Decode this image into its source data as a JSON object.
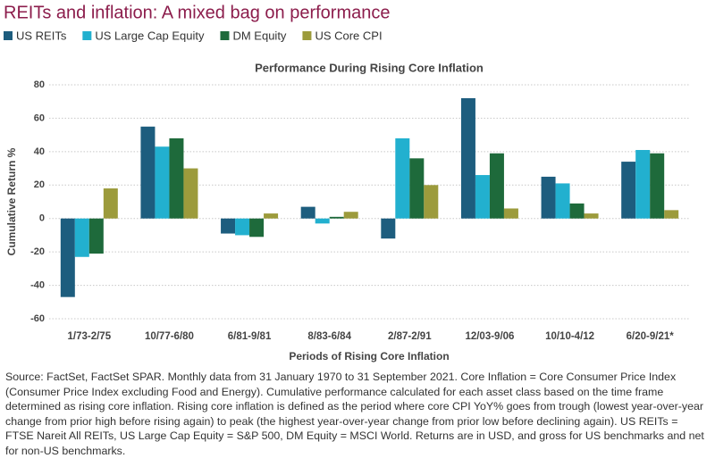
{
  "chart_data": {
    "type": "bar",
    "title": "REITs and inflation: A mixed bag on performance",
    "subtitle": "Performance During Rising Core Inflation",
    "xlabel": "Periods of Rising Core Inflation",
    "ylabel": "Cumulative Return %",
    "categories": [
      "1/73-2/75",
      "10/77-6/80",
      "6/81-9/81",
      "8/83-6/84",
      "2/87-2/91",
      "12/03-9/06",
      "10/10-4/12",
      "6/20-9/21*"
    ],
    "series": [
      {
        "name": "US REITs",
        "color": "#1d5d7e",
        "values": [
          -47,
          55,
          -9,
          7,
          -12,
          72,
          25,
          34
        ]
      },
      {
        "name": "US Large Cap Equity",
        "color": "#22b0cf",
        "values": [
          -23,
          43,
          -10,
          -3,
          48,
          26,
          21,
          41
        ]
      },
      {
        "name": "DM Equity",
        "color": "#1e6a3b",
        "values": [
          -21,
          48,
          -11,
          1,
          36,
          39,
          9,
          39
        ]
      },
      {
        "name": "US Core CPI",
        "color": "#9c9b3c",
        "values": [
          18,
          30,
          3,
          4,
          20,
          6,
          3,
          5
        ]
      }
    ],
    "ylim": [
      -60,
      80
    ],
    "yticks": [
      -60,
      -40,
      -20,
      0,
      20,
      40,
      60,
      80
    ],
    "grid": true,
    "source": "Source: FactSet, FactSet SPAR. Monthly data from 31 January 1970 to 31 September 2021. Core Inflation = Core Consumer Price Index (Consumer Price Index excluding Food and Energy). Cumulative performance calculated for each asset class based on the time frame determined as rising core inflation. Rising core inflation is defined as the period where core CPI YoY% goes from trough (lowest year-over-year change from prior high before rising again) to peak (the highest year-over-year change from prior low before declining again). US REITs = FTSE Nareit All REITs, US Large Cap Equity = S&P 500, DM Equity = MSCI World. Returns are in USD, and gross for US benchmarks and net for non-US benchmarks."
  }
}
